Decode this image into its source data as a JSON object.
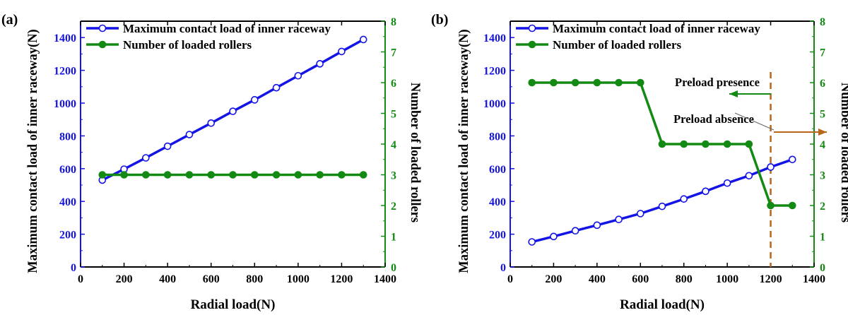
{
  "colors": {
    "left": "#1414e6",
    "right": "#138a13",
    "marker_line": "#b8661a",
    "axis": "#000000"
  },
  "chart_data": [
    {
      "panel_label": "(a)",
      "type": "line",
      "xlabel": "Radial load(N)",
      "ylabel": "Maximum contact load of inner raceway(N)",
      "y2label": "Number of loaded rollers",
      "xlim": [
        0,
        1400
      ],
      "ylim": [
        0,
        1500
      ],
      "y2lim": [
        0,
        8
      ],
      "xticks": [
        "0",
        "200",
        "400",
        "600",
        "800",
        "1000",
        "1200",
        "1400"
      ],
      "yticks": [
        "0",
        "200",
        "400",
        "600",
        "800",
        "1000",
        "1200",
        "1400"
      ],
      "y2ticks": [
        "0",
        "1",
        "2",
        "3",
        "4",
        "5",
        "6",
        "7",
        "8"
      ],
      "legend": "top-left",
      "series": [
        {
          "name": "Maximum contact load of inner raceway",
          "axis": "left",
          "marker": "open-circle",
          "x": [
            100,
            200,
            300,
            400,
            500,
            600,
            700,
            800,
            900,
            1000,
            1100,
            1200,
            1300
          ],
          "values": [
            530,
            597,
            666,
            737,
            808,
            878,
            950,
            1020,
            1094,
            1167,
            1240,
            1315,
            1388
          ]
        },
        {
          "name": "Number of loaded rollers",
          "axis": "right",
          "marker": "filled-circle",
          "x": [
            100,
            200,
            300,
            400,
            500,
            600,
            700,
            800,
            900,
            1000,
            1100,
            1200,
            1300
          ],
          "values": [
            3,
            3,
            3,
            3,
            3,
            3,
            3,
            3,
            3,
            3,
            3,
            3,
            3
          ]
        }
      ],
      "annotations": []
    },
    {
      "panel_label": "(b)",
      "type": "line",
      "xlabel": "Radial load(N)",
      "ylabel": "Maximum contact load of inner raceway(N)",
      "y2label": "Number of loaded rollers",
      "xlim": [
        0,
        1400
      ],
      "ylim": [
        0,
        1500
      ],
      "y2lim": [
        0,
        8
      ],
      "xticks": [
        "0",
        "200",
        "400",
        "600",
        "800",
        "1000",
        "1200",
        "1400"
      ],
      "yticks": [
        "0",
        "200",
        "400",
        "600",
        "800",
        "1000",
        "1200",
        "1400"
      ],
      "y2ticks": [
        "0",
        "1",
        "2",
        "3",
        "4",
        "5",
        "6",
        "7",
        "8"
      ],
      "legend": "top-left",
      "series": [
        {
          "name": "Maximum contact load of inner raceway",
          "axis": "left",
          "marker": "open-circle",
          "x": [
            100,
            200,
            300,
            400,
            500,
            600,
            700,
            800,
            900,
            1000,
            1100,
            1200,
            1300
          ],
          "values": [
            153,
            186,
            221,
            255,
            290,
            326,
            370,
            415,
            462,
            512,
            557,
            610,
            656
          ]
        },
        {
          "name": "Number of loaded rollers",
          "axis": "right",
          "marker": "filled-circle",
          "x": [
            100,
            200,
            300,
            400,
            500,
            600,
            700,
            800,
            900,
            1000,
            1100,
            1200,
            1300
          ],
          "values": [
            6,
            6,
            6,
            6,
            6,
            6,
            4,
            4,
            4,
            4,
            4,
            2,
            2
          ]
        }
      ],
      "vline_x": 1200,
      "annotations": [
        {
          "text": "Preload presence",
          "arrow": "left"
        },
        {
          "text": "Preload absence",
          "arrow": "right"
        }
      ]
    }
  ]
}
